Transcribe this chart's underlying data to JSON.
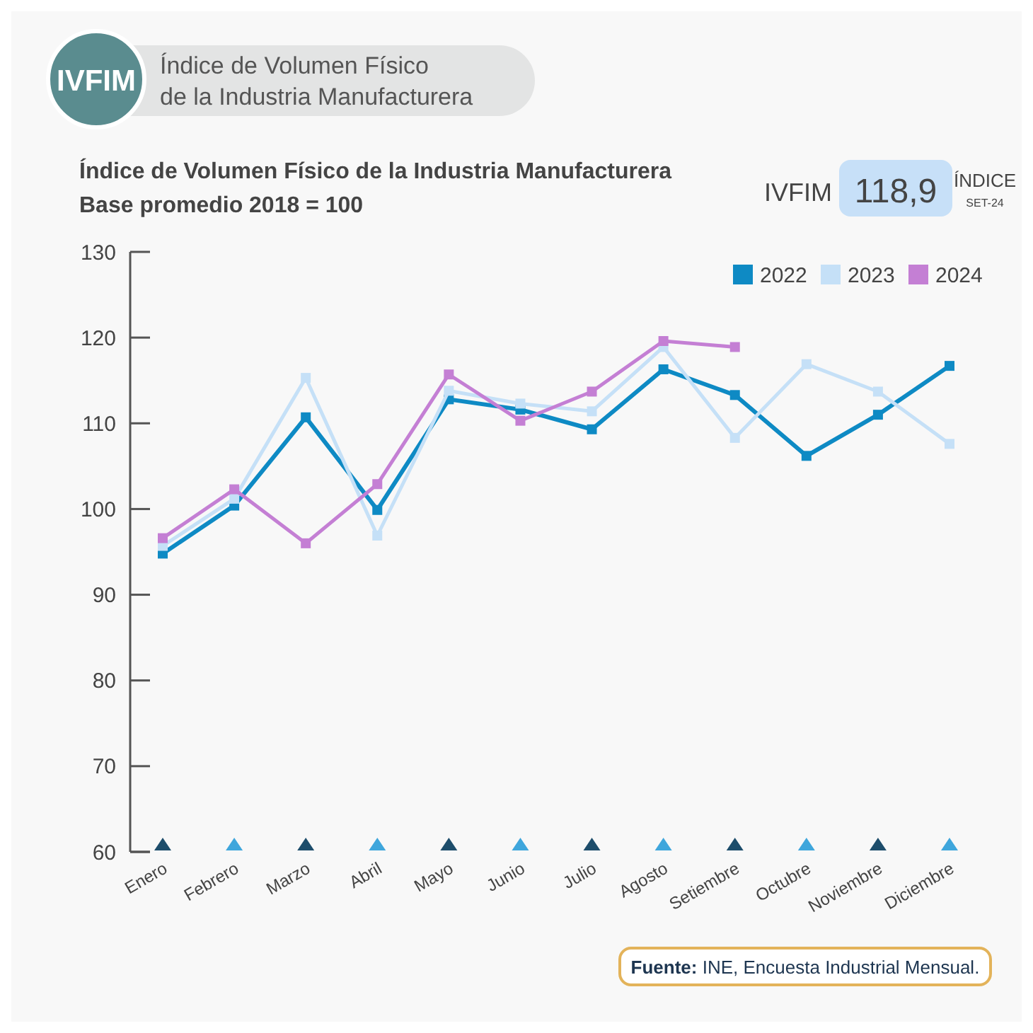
{
  "chart_data": {
    "type": "line",
    "title": "Índice de Volumen Físico de la Industria Manufacturera",
    "subtitle": "Base promedio 2018 = 100",
    "categories": [
      "Enero",
      "Febrero",
      "Marzo",
      "Abril",
      "Mayo",
      "Junio",
      "Julio",
      "Agosto",
      "Setiembre",
      "Octubre",
      "Noviembre",
      "Diciembre"
    ],
    "series": [
      {
        "name": "2022",
        "color": "#0e8ac4",
        "values": [
          94.8,
          100.4,
          110.7,
          99.9,
          112.8,
          111.6,
          109.3,
          116.3,
          113.3,
          106.2,
          111.0,
          116.7
        ]
      },
      {
        "name": "2023",
        "color": "#c5e0f7",
        "values": [
          95.7,
          101.2,
          115.3,
          96.9,
          113.8,
          112.3,
          111.4,
          118.9,
          108.3,
          116.9,
          113.7,
          107.6
        ]
      },
      {
        "name": "2024",
        "color": "#c47fd4",
        "values": [
          96.6,
          102.3,
          96.0,
          102.9,
          115.7,
          110.3,
          113.7,
          119.6,
          118.9,
          null,
          null,
          null
        ]
      }
    ],
    "ylim": [
      60,
      130
    ],
    "yticks": [
      60,
      70,
      80,
      90,
      100,
      110,
      120,
      130
    ],
    "grid": false,
    "legend": "top right",
    "marker": "square",
    "line_style": "solid",
    "annotations": [
      "IVFIM",
      "Índice de Volumen Físico",
      "de la Industria Manufacturera",
      "IVFIM",
      "118,9",
      "ÍNDICE",
      "SET-24",
      "Fuente: INE, Encuesta Industrial Mensual."
    ]
  }
}
